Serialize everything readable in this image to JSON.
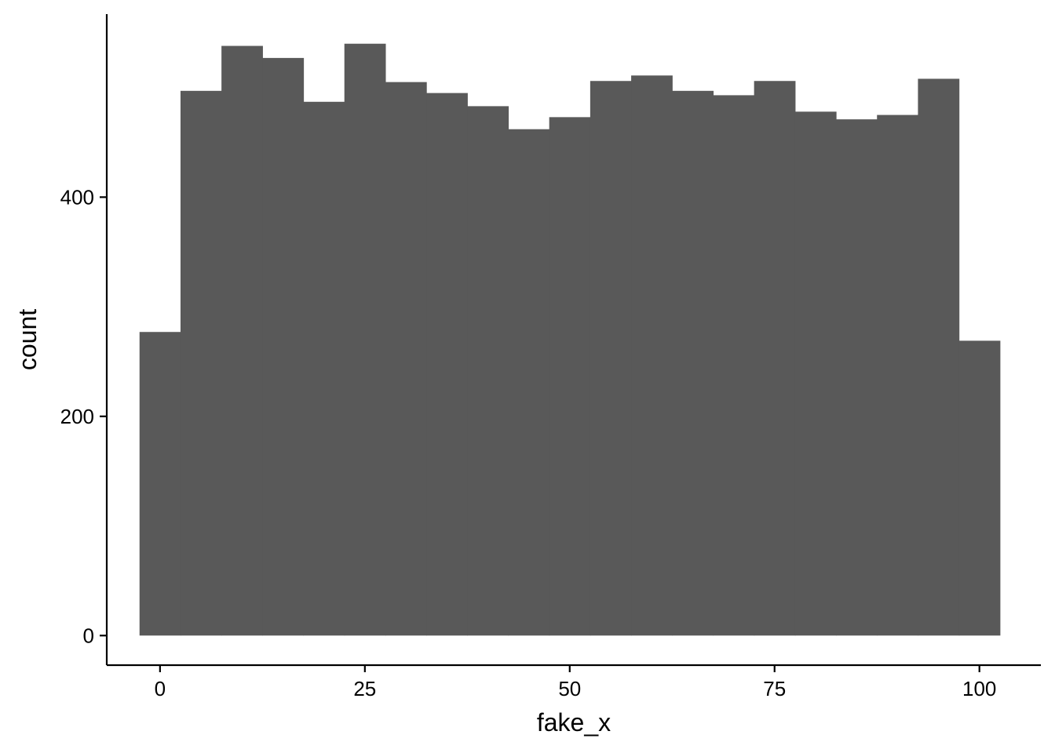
{
  "chart_data": {
    "type": "bar",
    "subtype": "histogram",
    "title": "",
    "xlabel": "fake_x",
    "ylabel": "count",
    "bin_width": 5,
    "bin_starts": [
      -2.5,
      2.5,
      7.5,
      12.5,
      17.5,
      22.5,
      27.5,
      32.5,
      37.5,
      42.5,
      47.5,
      52.5,
      57.5,
      62.5,
      67.5,
      72.5,
      77.5,
      82.5,
      87.5,
      92.5,
      97.5
    ],
    "values": [
      277,
      497,
      538,
      527,
      487,
      540,
      505,
      495,
      483,
      462,
      473,
      506,
      511,
      497,
      493,
      506,
      478,
      471,
      475,
      508,
      269
    ],
    "xlim": [
      -6.5,
      107.5
    ],
    "ylim": [
      -27,
      567
    ],
    "x_ticks": [
      0,
      25,
      50,
      75,
      100
    ],
    "x_tick_labels": [
      "0",
      "25",
      "50",
      "75",
      "100"
    ],
    "y_ticks": [
      0,
      200,
      400
    ],
    "y_tick_labels": [
      "0",
      "200",
      "400"
    ],
    "grid": false,
    "legend": "none",
    "colors": {
      "bar_fill": "#595959",
      "axis": "#000000",
      "background": "#ffffff"
    }
  }
}
